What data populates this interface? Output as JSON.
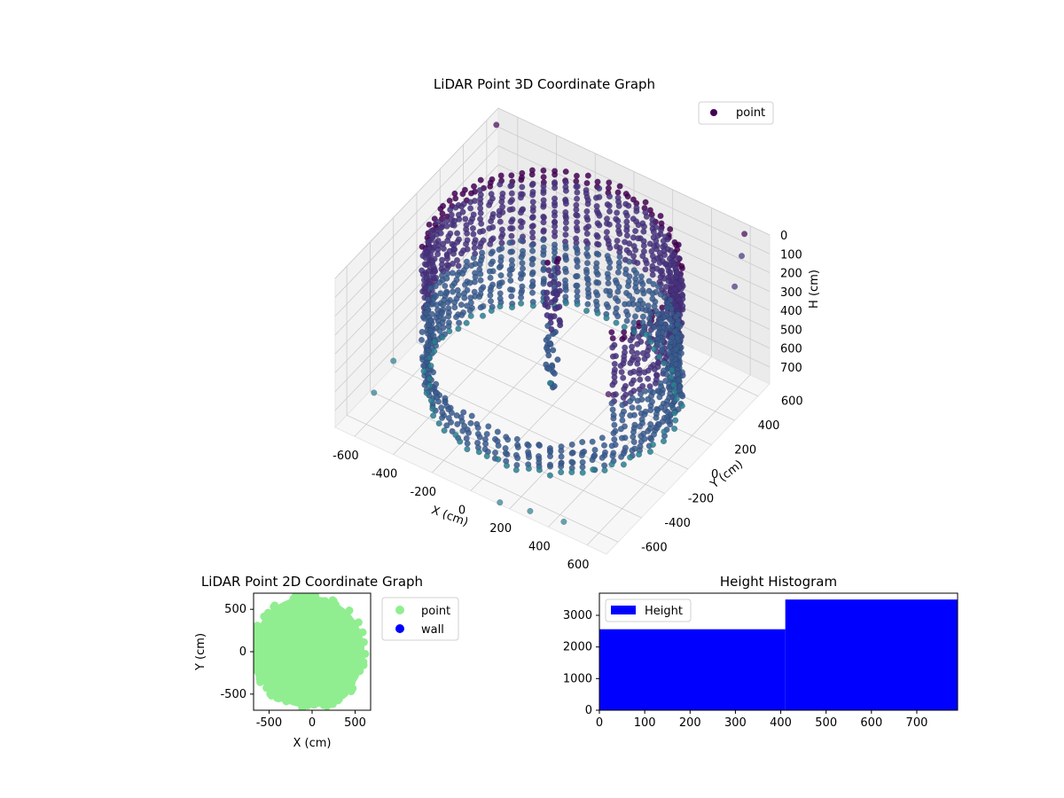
{
  "chart_data": [
    {
      "id": "lidar3d",
      "type": "scatter",
      "projection": "3d",
      "title": "LiDAR Point 3D Coordinate Graph",
      "xlabel": "X (cm)",
      "ylabel": "Y (cm)",
      "zlabel": "H (cm)",
      "xticks": [
        -600,
        -400,
        -200,
        0,
        200,
        400,
        600
      ],
      "yticks": [
        -600,
        -400,
        -200,
        0,
        200,
        400,
        600
      ],
      "zticks": [
        0,
        100,
        200,
        300,
        400,
        500,
        600,
        700
      ],
      "xlim": [
        -700,
        700
      ],
      "ylim": [
        -700,
        700
      ],
      "zlim": [
        0,
        790
      ],
      "z_inverted": true,
      "colormap": "viridis",
      "grid": true,
      "legend": {
        "placement": "upper-right",
        "entries": [
          {
            "name": "point",
            "color": "#440154"
          }
        ]
      },
      "series": [
        {
          "name": "point",
          "description_of_shape": "roughly cylindrical room scan: dense circular wall of radius ~550 cm spanning heights 0-700, central vertical column, sparse outliers",
          "wall": {
            "radius": 560,
            "h_range": [
              0,
              700
            ]
          },
          "column": {
            "x": 0,
            "y": 0,
            "h_range": [
              0,
              700
            ]
          },
          "outliers": [
            {
              "x": -650,
              "y": 600,
              "h": 0
            },
            {
              "x": 600,
              "y": 650,
              "h": 10
            },
            {
              "x": 650,
              "y": -600,
              "h": 30
            },
            {
              "x": 640,
              "y": 560,
              "h": 50
            },
            {
              "x": 700,
              "y": 400,
              "h": 80
            },
            {
              "x": -700,
              "y": -200,
              "h": 760
            },
            {
              "x": -680,
              "y": -400,
              "h": 790
            },
            {
              "x": 450,
              "y": -650,
              "h": 770
            },
            {
              "x": 300,
              "y": -690,
              "h": 760
            },
            {
              "x": 150,
              "y": -700,
              "h": 780
            }
          ]
        }
      ]
    },
    {
      "id": "lidar2d",
      "type": "scatter",
      "title": "LiDAR Point 2D Coordinate Graph",
      "xlabel": "X (cm)",
      "ylabel": "Y (cm)",
      "xticks": [
        -500,
        0,
        500
      ],
      "yticks": [
        -500,
        0,
        500
      ],
      "xlim": [
        -680,
        680
      ],
      "ylim": [
        -690,
        690
      ],
      "legend": {
        "placement": "outside-right",
        "entries": [
          {
            "name": "point",
            "color": "#90ee90"
          },
          {
            "name": "wall",
            "color": "#0000ff"
          }
        ]
      },
      "series": [
        {
          "name": "point",
          "color": "#90ee90",
          "description_of_shape": "filled disc of radius ~650 cm centred near origin, clipped by axes"
        },
        {
          "name": "wall",
          "color": "#0000ff",
          "values": []
        }
      ]
    },
    {
      "id": "height_hist",
      "type": "bar",
      "title": "Height Histogram",
      "xticks": [
        0,
        100,
        200,
        300,
        400,
        500,
        600,
        700
      ],
      "yticks": [
        0,
        1000,
        2000,
        3000
      ],
      "xlim": [
        0,
        790
      ],
      "ylim": [
        0,
        3700
      ],
      "legend": {
        "placement": "upper-left",
        "entries": [
          {
            "name": "Height",
            "color": "#0000ff"
          }
        ]
      },
      "bins": [
        {
          "x0": 0,
          "x1": 410,
          "count": 2560
        },
        {
          "x0": 410,
          "x1": 790,
          "count": 3500
        }
      ],
      "color": "#0000ff"
    }
  ]
}
